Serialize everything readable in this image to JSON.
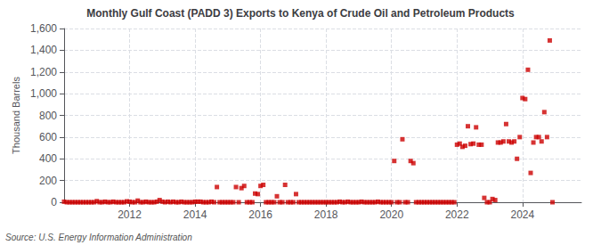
{
  "chart_data": {
    "type": "scatter",
    "title": "Monthly Gulf Coast (PADD 3) Exports to Kenya of Crude Oil and Petroleum Products",
    "ylabel": "Thousand Barrels",
    "annotations": [
      "Source: U.S. Energy Information Administration"
    ],
    "color": "#cc0000",
    "marker": "square",
    "grid": true,
    "xlim": [
      2010.0,
      2025.8
    ],
    "xticks": [
      2012,
      2014,
      2016,
      2018,
      2020,
      2022,
      2024
    ],
    "ylim": [
      0,
      1600
    ],
    "yticks": [
      0,
      200,
      400,
      600,
      800,
      {
        "value": 1000,
        "label": "1,000"
      },
      {
        "value": 1200,
        "label": "1,200"
      },
      {
        "value": 1400,
        "label": "1,400"
      },
      {
        "value": 1600,
        "label": "1,600"
      }
    ],
    "x": [
      2010.0,
      2010.083,
      2010.167,
      2010.25,
      2010.333,
      2010.417,
      2010.5,
      2010.583,
      2010.667,
      2010.75,
      2010.833,
      2010.917,
      2011.0,
      2011.083,
      2011.167,
      2011.25,
      2011.333,
      2011.417,
      2011.5,
      2011.583,
      2011.667,
      2011.75,
      2011.833,
      2011.917,
      2012.0,
      2012.083,
      2012.167,
      2012.25,
      2012.333,
      2012.417,
      2012.5,
      2012.583,
      2012.667,
      2012.75,
      2012.833,
      2012.917,
      2013.0,
      2013.083,
      2013.167,
      2013.25,
      2013.333,
      2013.417,
      2013.5,
      2013.583,
      2013.667,
      2013.75,
      2013.833,
      2013.917,
      2014.0,
      2014.083,
      2014.167,
      2014.25,
      2014.333,
      2014.417,
      2014.5,
      2014.583,
      2014.667,
      2014.75,
      2014.833,
      2014.917,
      2015.0,
      2015.083,
      2015.167,
      2015.25,
      2015.333,
      2015.417,
      2015.5,
      2015.583,
      2015.667,
      2015.75,
      2015.833,
      2015.917,
      2016.0,
      2016.083,
      2016.167,
      2016.25,
      2016.333,
      2016.417,
      2016.5,
      2016.583,
      2016.667,
      2016.75,
      2016.833,
      2016.917,
      2017.0,
      2017.083,
      2017.167,
      2017.25,
      2017.333,
      2017.417,
      2017.5,
      2017.583,
      2017.667,
      2017.75,
      2017.833,
      2017.917,
      2018.0,
      2018.083,
      2018.167,
      2018.25,
      2018.333,
      2018.417,
      2018.5,
      2018.583,
      2018.667,
      2018.75,
      2018.833,
      2018.917,
      2019.0,
      2019.083,
      2019.167,
      2019.25,
      2019.333,
      2019.417,
      2019.5,
      2019.583,
      2019.667,
      2019.75,
      2019.833,
      2019.917,
      2020.0,
      2020.083,
      2020.167,
      2020.25,
      2020.333,
      2020.417,
      2020.5,
      2020.583,
      2020.667,
      2020.75,
      2020.833,
      2020.917,
      2021.0,
      2021.083,
      2021.167,
      2021.25,
      2021.333,
      2021.417,
      2021.5,
      2021.583,
      2021.667,
      2021.75,
      2021.833,
      2021.917,
      2022.0,
      2022.083,
      2022.167,
      2022.25,
      2022.333,
      2022.417,
      2022.5,
      2022.583,
      2022.667,
      2022.75,
      2022.833,
      2022.917,
      2023.0,
      2023.083,
      2023.167,
      2023.25,
      2023.333,
      2023.417,
      2023.5,
      2023.583,
      2023.667,
      2023.75,
      2023.833,
      2023.917,
      2024.0,
      2024.083,
      2024.167,
      2024.25,
      2024.333,
      2024.417,
      2024.5,
      2024.583,
      2024.667,
      2024.75,
      2024.833,
      2024.917
    ],
    "values": [
      5,
      0,
      0,
      0,
      0,
      0,
      0,
      0,
      0,
      0,
      0,
      0,
      10,
      0,
      0,
      5,
      0,
      0,
      5,
      0,
      0,
      0,
      0,
      8,
      5,
      0,
      0,
      15,
      0,
      0,
      5,
      0,
      0,
      0,
      5,
      20,
      5,
      0,
      5,
      0,
      5,
      0,
      0,
      5,
      0,
      0,
      0,
      0,
      5,
      5,
      5,
      0,
      0,
      0,
      5,
      0,
      140,
      0,
      0,
      0,
      0,
      0,
      0,
      140,
      0,
      130,
      150,
      0,
      0,
      0,
      80,
      75,
      150,
      160,
      0,
      0,
      0,
      0,
      55,
      0,
      0,
      160,
      0,
      0,
      0,
      75,
      0,
      0,
      0,
      0,
      0,
      0,
      0,
      0,
      0,
      0,
      0,
      0,
      0,
      0,
      0,
      5,
      0,
      0,
      5,
      0,
      0,
      0,
      0,
      5,
      0,
      0,
      0,
      0,
      0,
      5,
      0,
      0,
      0,
      0,
      0,
      380,
      0,
      0,
      580,
      0,
      0,
      380,
      360,
      0,
      0,
      0,
      0,
      0,
      0,
      0,
      0,
      0,
      0,
      0,
      0,
      0,
      0,
      0,
      530,
      540,
      510,
      520,
      700,
      535,
      540,
      690,
      530,
      530,
      40,
      0,
      0,
      30,
      20,
      550,
      550,
      560,
      720,
      560,
      550,
      560,
      400,
      600,
      960,
      950,
      1220,
      270,
      550,
      600,
      600,
      560,
      830,
      600,
      1490,
      0
    ]
  }
}
